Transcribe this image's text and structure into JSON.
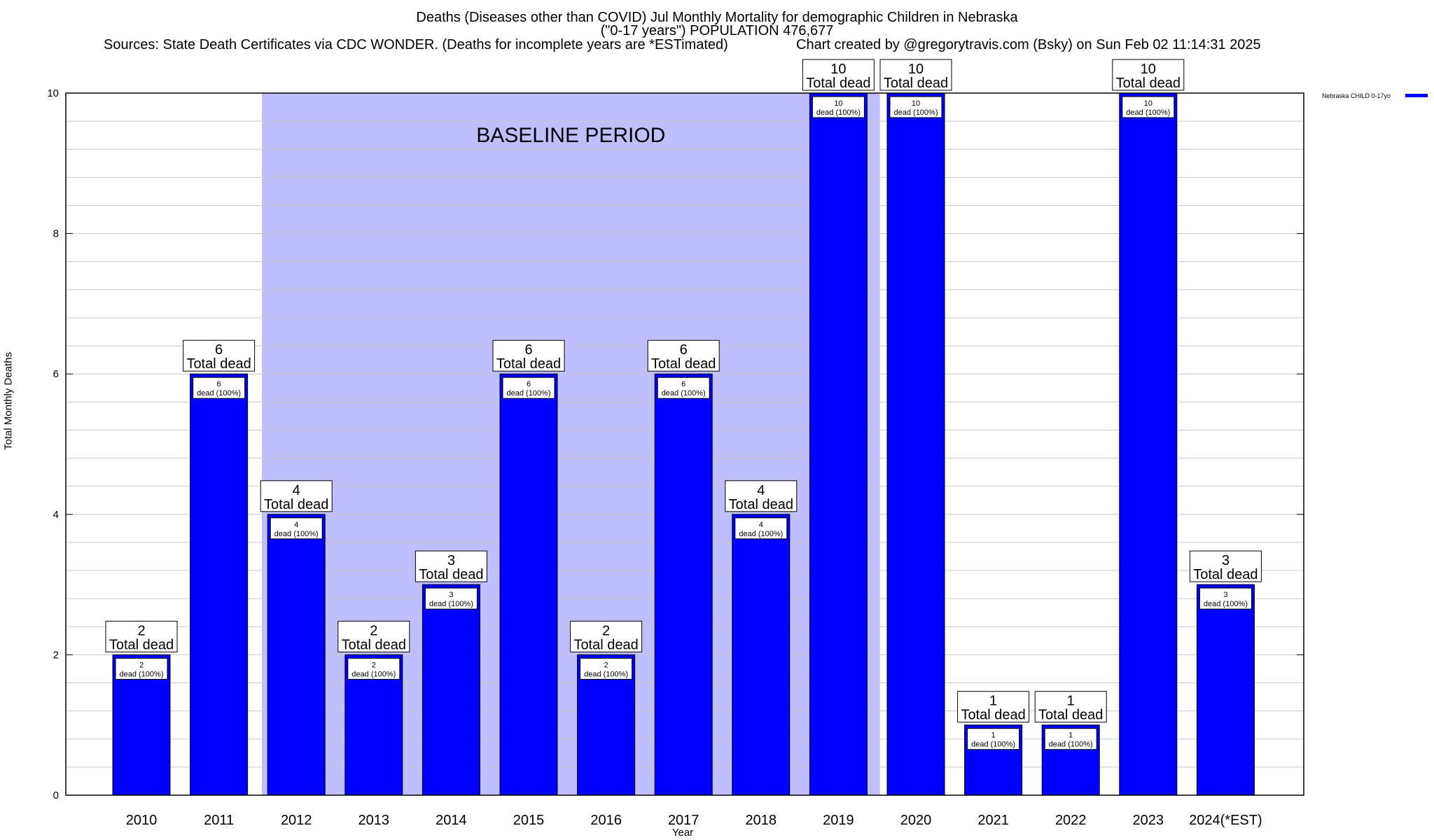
{
  "header": {
    "title_line1": "Deaths (Diseases other than COVID) Jul Monthly Mortality for demographic Children in Nebraska",
    "title_line2": "(\"0-17 years\") POPULATION 476,677",
    "sources": "Sources: State Death Certificates via CDC WONDER. (Deaths for incomplete years are *ESTimated)",
    "credit": "Chart created by @gregorytravis.com (Bsky) on Sun Feb 02 11:14:31 2025"
  },
  "chart_data": {
    "type": "bar",
    "categories": [
      "2010",
      "2011",
      "2012",
      "2013",
      "2014",
      "2015",
      "2016",
      "2017",
      "2018",
      "2019",
      "2020",
      "2021",
      "2022",
      "2023",
      "2024(*EST)"
    ],
    "series": [
      {
        "name": "Nebraska CHILD 0-17yo",
        "values": [
          2,
          6,
          4,
          2,
          3,
          6,
          2,
          6,
          4,
          10,
          10,
          1,
          1,
          10,
          3
        ]
      }
    ],
    "xlabel": "Year",
    "ylabel": "Total Monthly Deaths",
    "ylim": [
      0,
      10
    ],
    "yticks": [
      0,
      2,
      4,
      6,
      8,
      10
    ],
    "grid": true,
    "legend_position": "top-right",
    "baseline_period": {
      "label": "BASELINE PERIOD",
      "from": "2012",
      "to": "2019"
    },
    "bar_label_total": "Total dead",
    "bar_label_inner": "dead (100%)",
    "colors": {
      "bar": "#0000ff",
      "baseline_shade": "#bfbfff",
      "grid": "#c8c8c8"
    }
  }
}
